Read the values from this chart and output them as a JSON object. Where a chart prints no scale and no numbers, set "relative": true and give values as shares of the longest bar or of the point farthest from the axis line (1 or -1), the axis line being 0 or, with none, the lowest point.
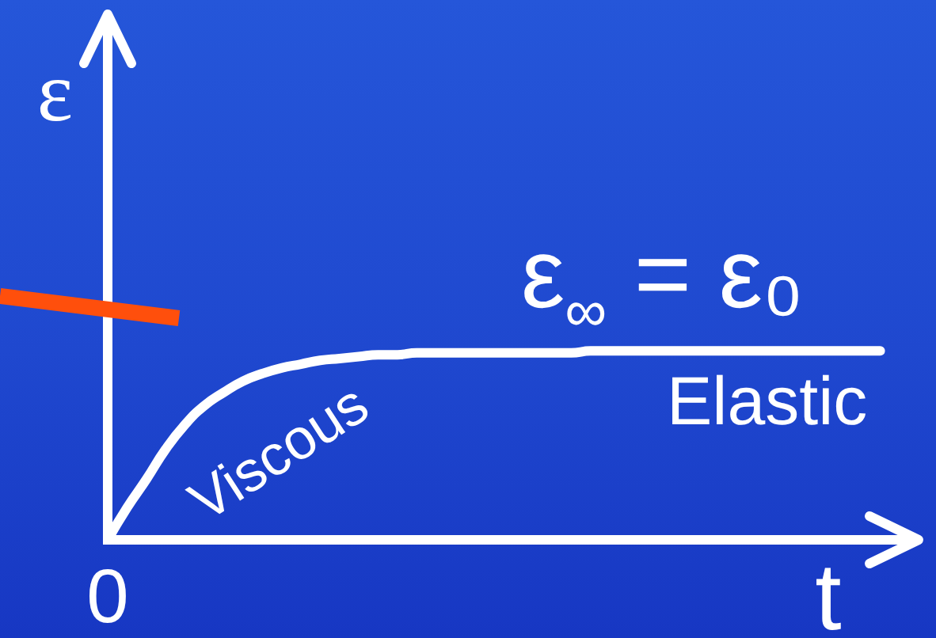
{
  "chart_data": {
    "type": "line",
    "xlabel": "t",
    "ylabel": "ε",
    "relative": true,
    "marker": "none",
    "color": "#ffffff",
    "categories": [
      null,
      null,
      null,
      null,
      null,
      null,
      null,
      null,
      null,
      null,
      null,
      null,
      null,
      null,
      null,
      null,
      null,
      null,
      null,
      null,
      null,
      null,
      null,
      null,
      null,
      null,
      null,
      null,
      null,
      null,
      null,
      null,
      null,
      null,
      null,
      null,
      null,
      null,
      null,
      null,
      null,
      null
    ],
    "values": [
      0,
      0.17,
      0.32,
      0.48,
      0.61,
      0.71,
      0.78,
      0.84,
      0.88,
      0.91,
      0.93,
      0.95,
      0.96,
      0.97,
      0.98,
      0.98,
      0.99,
      0.99,
      0.99,
      0.99,
      0.99,
      0.99,
      0.99,
      0.99,
      0.99,
      1,
      1,
      1,
      1,
      1,
      1,
      1,
      1,
      1,
      1,
      1,
      1,
      1,
      1,
      1,
      1,
      null
    ],
    "annotations": [
      "ε$_{∞}$ = ε₀",
      "Elastic",
      "Viscous",
      "0"
    ]
  }
}
